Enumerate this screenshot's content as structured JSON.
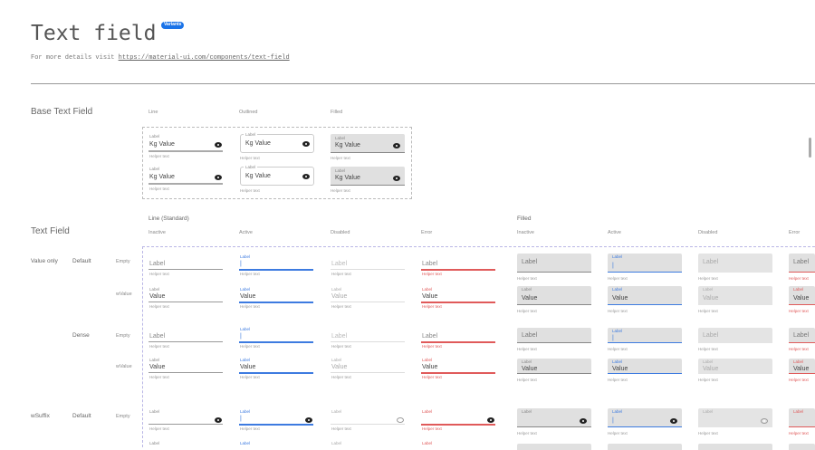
{
  "header": {
    "title": "Text field",
    "badge": "Variants",
    "subtitle_prefix": "For more details visit ",
    "link": "https://material-ui.com/components/text-field"
  },
  "base": {
    "title": "Base Text Field",
    "columns": [
      "Line",
      "Outlined",
      "Filled"
    ],
    "label": "Label",
    "prefix": "Kg",
    "value": "Value",
    "helper": "Helper text",
    "suffix_icon": "eye-icon"
  },
  "textfield": {
    "title": "Text Field",
    "groups": [
      "Line (Standard)",
      "Filled"
    ],
    "states": [
      "Inactive",
      "Active",
      "Disabled",
      "Error"
    ],
    "row_headers": [
      {
        "type": "Value only",
        "density": "Default",
        "content": "Empty"
      },
      {
        "type": "",
        "density": "",
        "content": "wValue"
      },
      {
        "type": "",
        "density": "Dense",
        "content": "Empty"
      },
      {
        "type": "",
        "density": "",
        "content": "wValue"
      },
      {
        "type": "wSuffix",
        "density": "Default",
        "content": "Empty"
      }
    ],
    "label": "Label",
    "value": "Value",
    "cursor": "|",
    "helper": "Helper text"
  },
  "colors": {
    "active": "#3d7be0",
    "error": "#e05a5a",
    "filled_bg": "#e0e0e0"
  }
}
